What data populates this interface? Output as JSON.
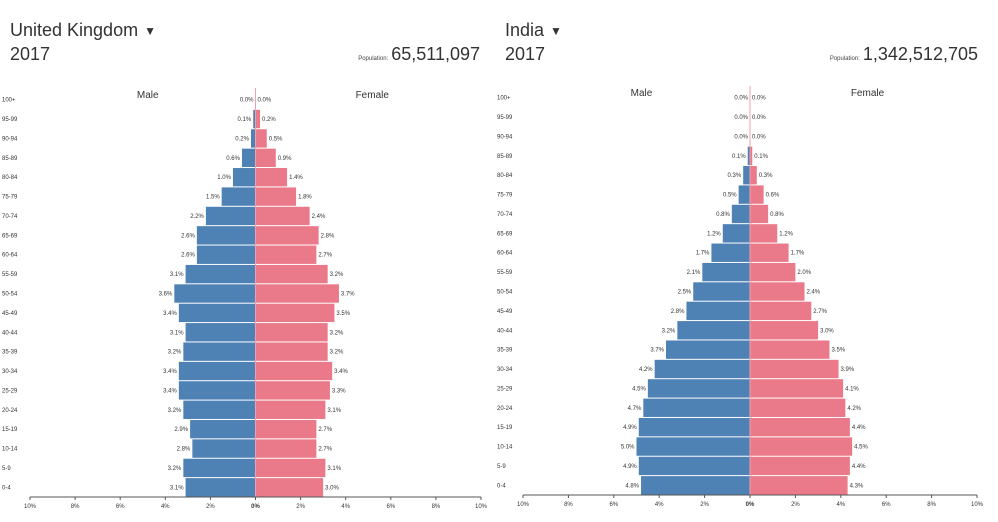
{
  "colors": {
    "male": "#4e82b4",
    "female": "#ea7a8a",
    "axis": "#555555",
    "text": "#333333"
  },
  "icons": {
    "dropdown": "caret-down-icon"
  },
  "chart_data": [
    {
      "type": "bar",
      "country": "United Kingdom",
      "year": "2017",
      "population_label": "Population:",
      "population": "65,511,097",
      "male_label": "Male",
      "female_label": "Female",
      "categories": [
        "100+",
        "95-99",
        "90-94",
        "85-89",
        "80-84",
        "75-79",
        "70-74",
        "65-69",
        "60-64",
        "55-59",
        "50-54",
        "45-49",
        "40-44",
        "35-39",
        "30-34",
        "25-29",
        "20-24",
        "15-19",
        "10-14",
        "5-9",
        "0-4"
      ],
      "series": [
        {
          "name": "Male",
          "values": [
            0.0,
            0.1,
            0.2,
            0.6,
            1.0,
            1.5,
            2.2,
            2.6,
            2.6,
            3.1,
            3.6,
            3.4,
            3.1,
            3.2,
            3.4,
            3.4,
            3.2,
            2.9,
            2.8,
            3.2,
            3.1
          ]
        },
        {
          "name": "Female",
          "values": [
            0.0,
            0.2,
            0.5,
            0.9,
            1.4,
            1.8,
            2.4,
            2.8,
            2.7,
            3.2,
            3.7,
            3.5,
            3.2,
            3.2,
            3.4,
            3.3,
            3.1,
            2.7,
            2.7,
            3.1,
            3.0
          ]
        }
      ],
      "xticks": [
        "10%",
        "8%",
        "6%",
        "4%",
        "2%",
        "0%",
        "2%",
        "4%",
        "6%",
        "8%",
        "10%"
      ],
      "xlim": [
        -10,
        10
      ]
    },
    {
      "type": "bar",
      "country": "India",
      "year": "2017",
      "population_label": "Population:",
      "population": "1,342,512,705",
      "male_label": "Male",
      "female_label": "Female",
      "categories": [
        "100+",
        "95-99",
        "90-94",
        "85-89",
        "80-84",
        "75-79",
        "70-74",
        "65-69",
        "60-64",
        "55-59",
        "50-54",
        "45-49",
        "40-44",
        "35-39",
        "30-34",
        "25-29",
        "20-24",
        "15-19",
        "10-14",
        "5-9",
        "0-4"
      ],
      "series": [
        {
          "name": "Male",
          "values": [
            0.0,
            0.0,
            0.0,
            0.1,
            0.3,
            0.5,
            0.8,
            1.2,
            1.7,
            2.1,
            2.5,
            2.8,
            3.2,
            3.7,
            4.2,
            4.5,
            4.7,
            4.9,
            5.0,
            4.9,
            4.8
          ]
        },
        {
          "name": "Female",
          "values": [
            0.0,
            0.0,
            0.0,
            0.1,
            0.3,
            0.6,
            0.8,
            1.2,
            1.7,
            2.0,
            2.4,
            2.7,
            3.0,
            3.5,
            3.9,
            4.1,
            4.2,
            4.4,
            4.5,
            4.4,
            4.3
          ]
        }
      ],
      "xticks": [
        "10%",
        "8%",
        "6%",
        "4%",
        "2%",
        "0%",
        "2%",
        "4%",
        "6%",
        "8%",
        "10%"
      ],
      "xlim": [
        -10,
        10
      ]
    }
  ]
}
